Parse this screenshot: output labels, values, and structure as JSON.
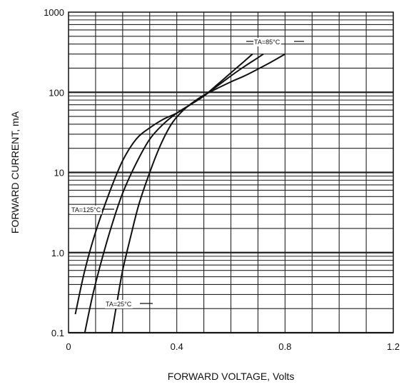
{
  "chart_data": {
    "type": "line",
    "xlabel": "FORWARD VOLTAGE, Volts",
    "ylabel": "FORWARD CURRENT, mA",
    "xlim": [
      0,
      1.2
    ],
    "ylim": [
      0.1,
      1000
    ],
    "yscale": "log",
    "grid": true,
    "x_ticks": [
      0,
      0.4,
      0.8,
      1.2
    ],
    "x_tick_labels": [
      "0",
      "0.4",
      "0.8",
      "1.2"
    ],
    "y_ticks": [
      0.1,
      1,
      10,
      100,
      1000
    ],
    "y_tick_labels": [
      "0.1",
      "1.0",
      "10",
      "100",
      "1000"
    ],
    "line_color": "#111111",
    "series": [
      {
        "name": "TA=125°C",
        "label_text": "TA=125°C",
        "x": [
          0.025,
          0.06,
          0.1,
          0.15,
          0.2,
          0.25,
          0.3,
          0.35,
          0.4,
          0.45,
          0.5,
          0.55,
          0.6,
          0.65,
          0.68
        ],
        "y": [
          0.17,
          0.6,
          1.8,
          5.5,
          14,
          26,
          36,
          46,
          55,
          70,
          90,
          125,
          175,
          245,
          300
        ]
      },
      {
        "name": "TA=85°C",
        "label_text": "TA=85°C",
        "x": [
          0.06,
          0.09,
          0.12,
          0.16,
          0.2,
          0.25,
          0.3,
          0.35,
          0.4,
          0.45,
          0.5,
          0.55,
          0.6,
          0.65,
          0.7,
          0.72
        ],
        "y": [
          0.1,
          0.3,
          0.75,
          2.2,
          5.5,
          13,
          26,
          40,
          55,
          70,
          90,
          120,
          160,
          210,
          270,
          300
        ]
      },
      {
        "name": "TA=25°C",
        "label_text": "TA=25°C",
        "x": [
          0.16,
          0.18,
          0.2,
          0.23,
          0.26,
          0.3,
          0.34,
          0.38,
          0.42,
          0.46,
          0.5,
          0.55,
          0.6,
          0.65,
          0.7,
          0.75,
          0.8
        ],
        "y": [
          0.1,
          0.25,
          0.6,
          1.6,
          4,
          10,
          22,
          40,
          58,
          75,
          92,
          112,
          135,
          160,
          195,
          240,
          300
        ]
      }
    ]
  }
}
